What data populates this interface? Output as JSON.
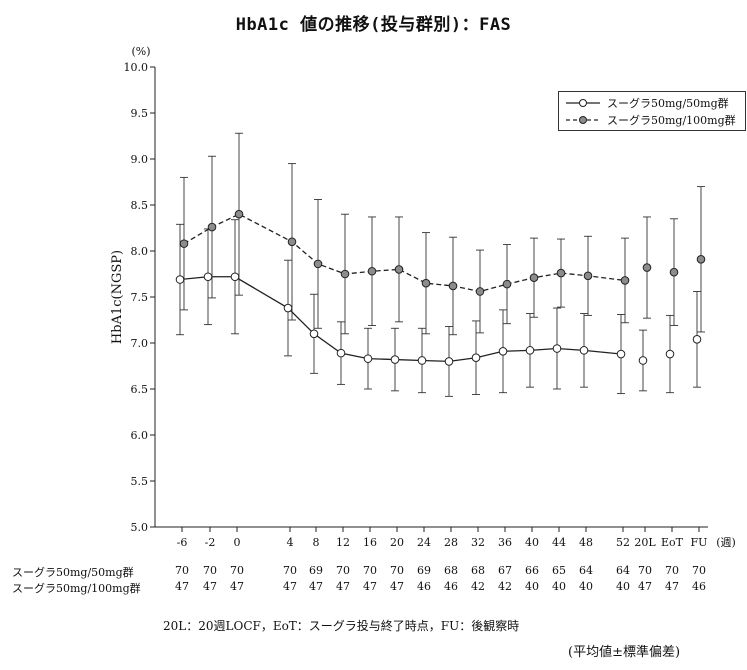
{
  "title": "HbA1c 値の推移(投与群別)：FAS",
  "unit_label": "(%)",
  "x_unit_label": "(週)",
  "footnote": "20L：20週LOCF，EoT：スーグラ投与終了時点，FU：後観察時",
  "stat_note": "(平均値±標準偏差)",
  "colors": {
    "open_marker": "#ffffff",
    "filled_marker": "#8c8c8c",
    "line": "#222222",
    "errorbar": "#333333"
  },
  "chart_data": {
    "type": "line",
    "ylabel": "HbA1c(NGSP)",
    "ylim": [
      5.0,
      10.0
    ],
    "yticks": [
      "5.0",
      "5.5",
      "6.0",
      "6.5",
      "7.0",
      "7.5",
      "8.0",
      "8.5",
      "9.0",
      "9.5",
      "10.0"
    ],
    "categories": [
      "-6",
      "-2",
      "0",
      "4",
      "8",
      "12",
      "16",
      "20",
      "24",
      "28",
      "32",
      "36",
      "40",
      "44",
      "48",
      "52",
      "20L",
      "EoT",
      "FU"
    ],
    "connected_categories": [
      "-6",
      "-2",
      "0",
      "4",
      "8",
      "12",
      "16",
      "20",
      "24",
      "28",
      "32",
      "36",
      "40",
      "44",
      "48",
      "52"
    ],
    "legend_position": "top-right",
    "grid": false,
    "series": [
      {
        "name": "スーグラ50mg/50mg群",
        "marker": "open",
        "line_style": "solid",
        "values": [
          7.69,
          7.72,
          7.72,
          7.38,
          7.1,
          6.89,
          6.83,
          6.82,
          6.81,
          6.8,
          6.84,
          6.91,
          6.92,
          6.94,
          6.92,
          6.88,
          6.81,
          6.88,
          7.04
        ],
        "sd": [
          0.6,
          0.52,
          0.62,
          0.52,
          0.43,
          0.34,
          0.33,
          0.34,
          0.35,
          0.38,
          0.4,
          0.45,
          0.4,
          0.44,
          0.4,
          0.43,
          0.33,
          0.42,
          0.52
        ],
        "n": [
          "70",
          "70",
          "70",
          "70",
          "69",
          "70",
          "70",
          "70",
          "69",
          "68",
          "68",
          "67",
          "66",
          "65",
          "64",
          "64",
          "70",
          "70",
          "70"
        ]
      },
      {
        "name": "スーグラ50mg/100mg群",
        "marker": "filled",
        "line_style": "dashed",
        "values": [
          8.08,
          8.26,
          8.4,
          8.1,
          7.86,
          7.75,
          7.78,
          7.8,
          7.65,
          7.62,
          7.56,
          7.64,
          7.71,
          7.76,
          7.73,
          7.68,
          7.82,
          7.77,
          7.91
        ],
        "sd": [
          0.72,
          0.77,
          0.88,
          0.85,
          0.7,
          0.65,
          0.59,
          0.57,
          0.55,
          0.53,
          0.45,
          0.43,
          0.43,
          0.37,
          0.43,
          0.46,
          0.55,
          0.58,
          0.79
        ],
        "n": [
          "47",
          "47",
          "47",
          "47",
          "47",
          "47",
          "47",
          "47",
          "46",
          "46",
          "42",
          "42",
          "40",
          "40",
          "40",
          "40",
          "47",
          "47",
          "46"
        ]
      }
    ]
  }
}
